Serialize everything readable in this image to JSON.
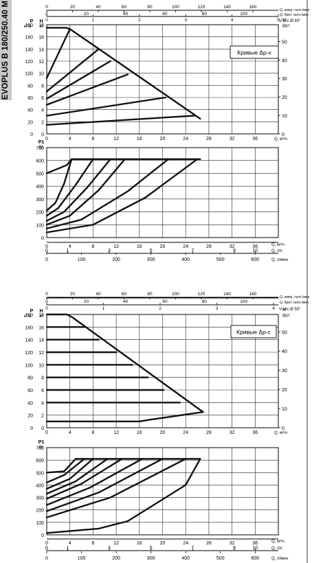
{
  "side_title": "EVOPLUS B 180/250.40 M",
  "chart_data": [
    {
      "type": "line",
      "title": "Кривые Δp-v",
      "top_axes": {
        "gpm": {
          "label": "Q, амер. галл./мин",
          "ticks": [
            0,
            20,
            40,
            60,
            80,
            100,
            120,
            140,
            160
          ]
        },
        "igpm": {
          "label": "Q, брит. галл./мин",
          "ticks": [
            0,
            20,
            40,
            60,
            80,
            100,
            120
          ]
        },
        "velocity": {
          "label": "V м/с Ø 40\"",
          "ticks": [
            0,
            1,
            2,
            3,
            4,
            5
          ]
        }
      },
      "head_chart": {
        "xlabel": "Q, м³/ч",
        "xlim": [
          0,
          40
        ],
        "x_ticks": [
          0,
          4,
          8,
          12,
          16,
          20,
          24,
          28,
          32,
          36
        ],
        "y_left_label_top": "P",
        "y_left_label_bottom": "кПа",
        "y_left_ticks": [
          0,
          20,
          40,
          60,
          80,
          100,
          120,
          140,
          160,
          180
        ],
        "y_h_label": "H",
        "y_h_unit": "м",
        "ylim": [
          0,
          18
        ],
        "y_h_ticks": [
          0,
          2,
          4,
          6,
          8,
          10,
          12,
          14,
          16,
          18
        ],
        "y_right_label": "H",
        "y_right_unit": "фут",
        "y_right_ticks": [
          0,
          10,
          20,
          30,
          40,
          50
        ],
        "series": [
          {
            "x": [
              0,
              3.3,
              4.0,
              26.5
            ],
            "y": [
              17.5,
              17.5,
              17.3,
              2.5
            ]
          },
          {
            "x": [
              0,
              4.0
            ],
            "y": [
              9.2,
              17.3
            ]
          },
          {
            "x": [
              0,
              9.0
            ],
            "y": [
              7.0,
              14.0
            ]
          },
          {
            "x": [
              0,
              11.0
            ],
            "y": [
              5.8,
              12.0
            ]
          },
          {
            "x": [
              0,
              14.0
            ],
            "y": [
              4.8,
              9.8
            ]
          },
          {
            "x": [
              0,
              20.5
            ],
            "y": [
              3.0,
              6.0
            ]
          },
          {
            "x": [
              0,
              25.5
            ],
            "y": [
              1.5,
              3.0
            ]
          }
        ]
      },
      "power_chart": {
        "y_label": "P1",
        "y_unit": "Вт",
        "ylim": [
          0,
          700
        ],
        "y_ticks": [
          0,
          100,
          200,
          300,
          400,
          500,
          600,
          700
        ],
        "xlabel": "Q, м³/ч",
        "x_ticks": [
          0,
          4,
          8,
          12,
          16,
          20,
          24,
          28,
          32,
          36
        ],
        "series": [
          {
            "x": [
              0,
              3.5,
              4.3,
              26.5
            ],
            "y": [
              500,
              565,
              610,
              610
            ]
          },
          {
            "x": [
              0,
              1.5,
              3.0,
              4.3
            ],
            "y": [
              210,
              270,
              420,
              610
            ]
          },
          {
            "x": [
              0,
              2.0,
              5.0,
              8.0
            ],
            "y": [
              170,
              230,
              410,
              610
            ]
          },
          {
            "x": [
              0,
              3.0,
              7.0,
              11.0
            ],
            "y": [
              130,
              200,
              390,
              610
            ]
          },
          {
            "x": [
              0,
              4.0,
              9.0,
              13.5
            ],
            "y": [
              100,
              170,
              370,
              610
            ]
          },
          {
            "x": [
              0,
              6.0,
              14.0,
              21.0
            ],
            "y": [
              70,
              140,
              360,
              610
            ]
          },
          {
            "x": [
              0,
              8.0,
              17.0,
              26.0
            ],
            "y": [
              40,
              100,
              310,
              610
            ]
          }
        ]
      },
      "bottom_axes": {
        "m3h": {
          "label": "Q, м³/ч",
          "ticks": [
            0,
            4,
            8,
            12,
            16,
            20,
            24,
            28,
            32,
            36
          ]
        },
        "ls": {
          "label": "Q, л/с",
          "ticks": [
            0,
            1,
            3,
            5,
            7,
            9,
            10
          ]
        },
        "lmin": {
          "label": "Q, л/мин",
          "ticks": [
            0,
            100,
            200,
            300,
            400,
            500,
            600
          ]
        }
      },
      "grid": true
    },
    {
      "type": "line",
      "title": "Кривые Δp-c",
      "top_axes": {
        "gpm": {
          "label": "Q, амер. галл./мин",
          "ticks": [
            0,
            20,
            40,
            60,
            80,
            100,
            120,
            140,
            160
          ]
        },
        "igpm": {
          "label": "Q, брит. галл./мин",
          "ticks": [
            0,
            20,
            40,
            60,
            80,
            100,
            120
          ]
        },
        "velocity": {
          "label": "V м/с Ø 50\"",
          "ticks": [
            0,
            1,
            2,
            3,
            4
          ]
        }
      },
      "head_chart": {
        "xlabel": "Q, м³/ч",
        "xlim": [
          0,
          40
        ],
        "x_ticks": [
          0,
          4,
          8,
          12,
          16,
          20,
          24,
          28,
          32,
          36
        ],
        "y_left_label_top": "P",
        "y_left_label_bottom": "кПа",
        "y_left_ticks": [
          0,
          20,
          40,
          60,
          80,
          100,
          120,
          140,
          160,
          180
        ],
        "y_h_label": "H",
        "y_h_unit": "м",
        "ylim": [
          0,
          18
        ],
        "y_h_ticks": [
          0,
          2,
          4,
          6,
          8,
          10,
          12,
          14,
          16,
          18
        ],
        "y_right_label": "H",
        "y_right_unit": "фут",
        "y_right_ticks": [
          0,
          10,
          20,
          30,
          40,
          50
        ],
        "series": [
          {
            "x": [
              0,
              3.5,
              4.5,
              27.0
            ],
            "y": [
              18,
              18,
              17.5,
              2.5
            ]
          },
          {
            "x": [
              0,
              6.5
            ],
            "y": [
              16,
              16
            ]
          },
          {
            "x": [
              0,
              9.0
            ],
            "y": [
              14,
              14
            ]
          },
          {
            "x": [
              0,
              12.0
            ],
            "y": [
              12,
              12
            ]
          },
          {
            "x": [
              0,
              14.8
            ],
            "y": [
              10,
              10
            ]
          },
          {
            "x": [
              0,
              17.5
            ],
            "y": [
              8,
              8
            ]
          },
          {
            "x": [
              0,
              20.2
            ],
            "y": [
              6,
              6
            ]
          },
          {
            "x": [
              0,
              23.0
            ],
            "y": [
              4,
              4
            ]
          },
          {
            "x": [
              0,
              16.0,
              18.0,
              27.0
            ],
            "y": [
              1,
              1,
              1.3,
              2.5
            ]
          }
        ]
      },
      "power_chart": {
        "y_label": "P1",
        "y_unit": "Вт",
        "ylim": [
          0,
          700
        ],
        "y_ticks": [
          0,
          100,
          200,
          300,
          400,
          500,
          600,
          700
        ],
        "xlabel": "Q, м³/ч",
        "x_ticks": [
          0,
          4,
          8,
          12,
          16,
          20,
          24,
          28,
          32,
          36
        ],
        "series": [
          {
            "x": [
              0,
              3.0,
              5.0,
              26.5
            ],
            "y": [
              500,
              510,
              610,
              610
            ]
          },
          {
            "x": [
              0,
              3.0,
              6.5
            ],
            "y": [
              420,
              480,
              610
            ]
          },
          {
            "x": [
              0,
              4.0,
              8.0
            ],
            "y": [
              370,
              450,
              610
            ]
          },
          {
            "x": [
              0,
              5.0,
              10.5
            ],
            "y": [
              330,
              430,
              610
            ]
          },
          {
            "x": [
              0,
              6.0,
              13.0
            ],
            "y": [
              290,
              410,
              610
            ]
          },
          {
            "x": [
              0,
              7.5,
              16.5
            ],
            "y": [
              240,
              380,
              610
            ]
          },
          {
            "x": [
              0,
              9.0,
              20.0
            ],
            "y": [
              190,
              340,
              610
            ]
          },
          {
            "x": [
              0,
              11.0,
              24.0
            ],
            "y": [
              140,
              300,
              610
            ]
          },
          {
            "x": [
              0,
              9.0,
              14.0,
              24.0,
              26.5
            ],
            "y": [
              15,
              50,
              110,
              400,
              610
            ]
          }
        ]
      },
      "bottom_axes": {
        "m3h": {
          "label": "Q, м³/ч",
          "ticks": [
            0,
            4,
            8,
            12,
            16,
            20,
            24,
            28,
            32,
            36
          ]
        },
        "ls": {
          "label": "Q, л/с",
          "ticks": [
            0,
            1,
            3,
            5,
            7,
            9,
            10
          ]
        },
        "lmin": {
          "label": "Q, л/мин",
          "ticks": [
            0,
            100,
            200,
            300,
            400,
            500,
            600
          ]
        }
      },
      "grid": true
    }
  ]
}
